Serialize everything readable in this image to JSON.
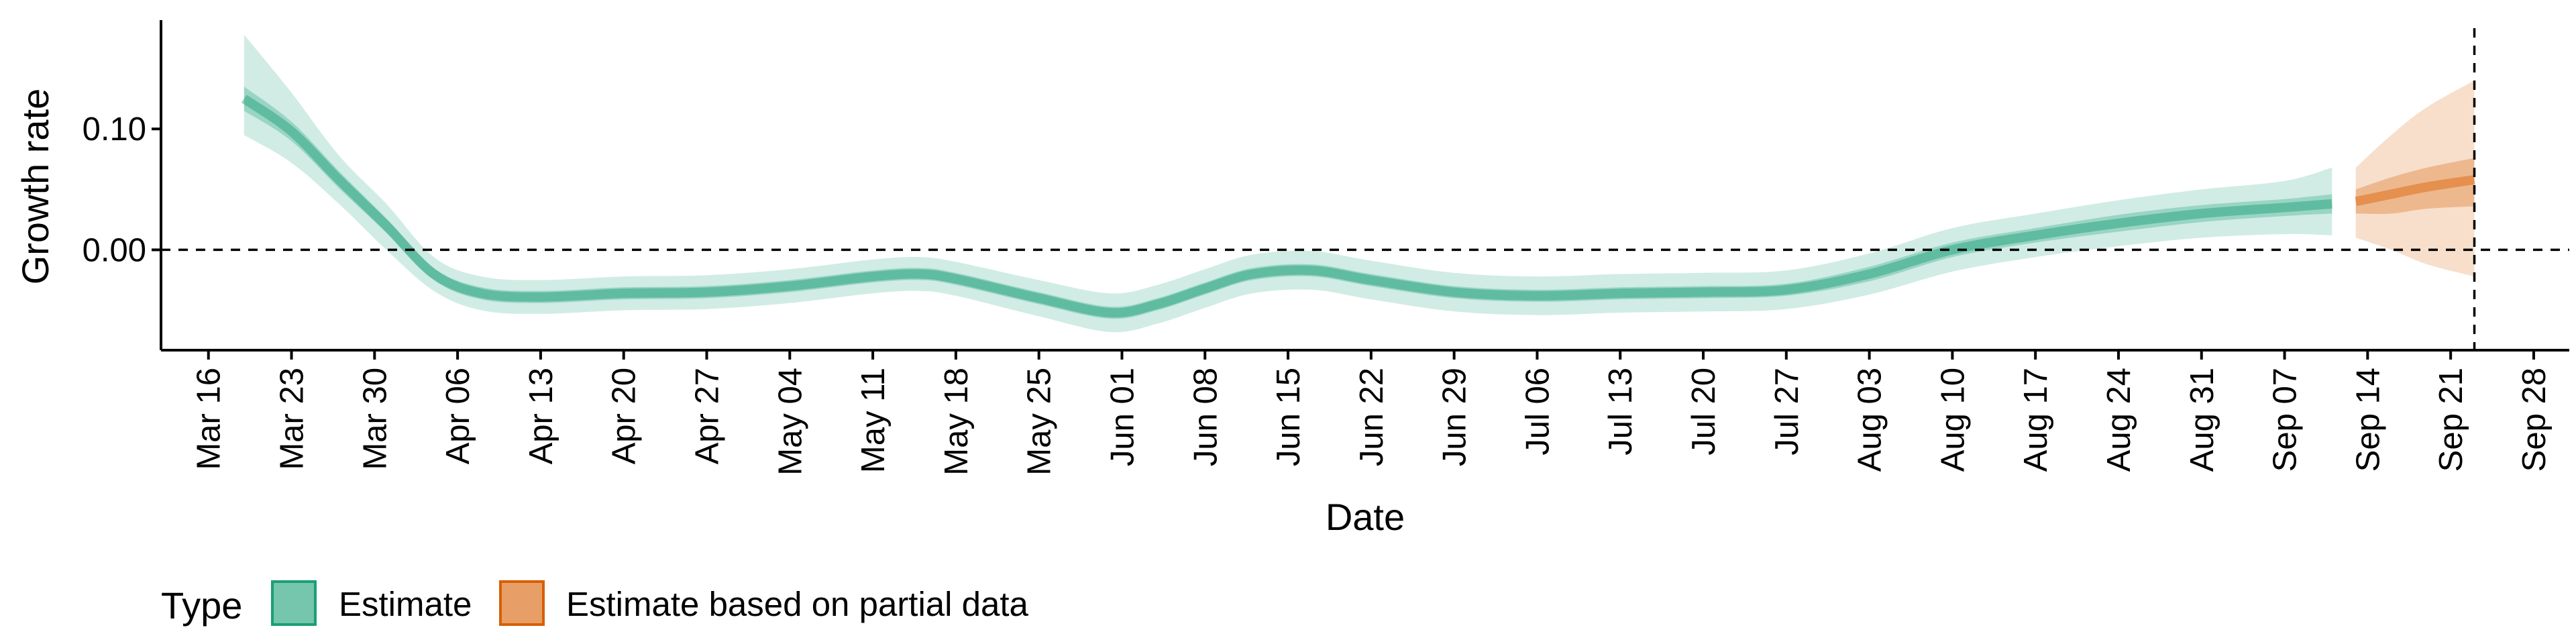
{
  "chart_data": {
    "type": "area",
    "xlabel": "Date",
    "ylabel": "Growth rate",
    "ylim": [
      -0.083,
      0.19
    ],
    "x_ticks": [
      "2020-03-16",
      "2020-03-23",
      "2020-03-30",
      "2020-04-06",
      "2020-04-13",
      "2020-04-20",
      "2020-04-27",
      "2020-05-04",
      "2020-05-11",
      "2020-05-18",
      "2020-05-25",
      "2020-06-01",
      "2020-06-08",
      "2020-06-15",
      "2020-06-22",
      "2020-06-29",
      "2020-07-06",
      "2020-07-13",
      "2020-07-20",
      "2020-07-27",
      "2020-08-03",
      "2020-08-10",
      "2020-08-17",
      "2020-08-24",
      "2020-08-31",
      "2020-09-07",
      "2020-09-14",
      "2020-09-21",
      "2020-09-28"
    ],
    "x_tick_labels": [
      "Mar 16",
      "Mar 23",
      "Mar 30",
      "Apr 06",
      "Apr 13",
      "Apr 20",
      "Apr 27",
      "May 04",
      "May 11",
      "May 18",
      "May 25",
      "Jun 01",
      "Jun 08",
      "Jun 15",
      "Jun 22",
      "Jun 29",
      "Jul 06",
      "Jul 13",
      "Jul 20",
      "Jul 27",
      "Aug 03",
      "Aug 10",
      "Aug 17",
      "Aug 24",
      "Aug 31",
      "Sep 07",
      "Sep 14",
      "Sep 21",
      "Sep 28"
    ],
    "y_ticks": [
      0.0,
      0.1
    ],
    "y_tick_labels": [
      "0.00",
      "0.10"
    ],
    "reference_lines": {
      "horizontal_y": 0.0,
      "vertical_x": "2020-09-23"
    },
    "legend": {
      "title": "Type",
      "position": "bottom-left",
      "entries": [
        "Estimate",
        "Estimate based on partial data"
      ]
    },
    "series": [
      {
        "name": "Estimate",
        "color": "#1b9e77",
        "x": [
          "2020-03-19",
          "2020-03-23",
          "2020-03-27",
          "2020-03-31",
          "2020-04-04",
          "2020-04-08",
          "2020-04-13",
          "2020-04-20",
          "2020-04-27",
          "2020-05-04",
          "2020-05-11",
          "2020-05-15",
          "2020-05-18",
          "2020-05-25",
          "2020-05-31",
          "2020-06-04",
          "2020-06-08",
          "2020-06-12",
          "2020-06-17",
          "2020-06-22",
          "2020-06-29",
          "2020-07-06",
          "2020-07-13",
          "2020-07-20",
          "2020-07-27",
          "2020-08-03",
          "2020-08-10",
          "2020-08-17",
          "2020-08-24",
          "2020-08-31",
          "2020-09-07",
          "2020-09-11"
        ],
        "median": [
          0.125,
          0.098,
          0.058,
          0.02,
          -0.02,
          -0.036,
          -0.039,
          -0.036,
          -0.035,
          -0.03,
          -0.022,
          -0.02,
          -0.024,
          -0.04,
          -0.052,
          -0.045,
          -0.032,
          -0.02,
          -0.017,
          -0.025,
          -0.035,
          -0.038,
          -0.036,
          -0.035,
          -0.033,
          -0.02,
          0.0,
          0.012,
          0.022,
          0.03,
          0.035,
          0.038
        ],
        "lower90": [
          0.095,
          0.072,
          0.038,
          0.0,
          -0.034,
          -0.05,
          -0.053,
          -0.05,
          -0.049,
          -0.044,
          -0.036,
          -0.034,
          -0.038,
          -0.055,
          -0.068,
          -0.061,
          -0.048,
          -0.036,
          -0.033,
          -0.041,
          -0.051,
          -0.054,
          -0.052,
          -0.051,
          -0.049,
          -0.037,
          -0.018,
          -0.006,
          0.003,
          0.01,
          0.013,
          0.012
        ],
        "upper90": [
          0.178,
          0.13,
          0.078,
          0.038,
          -0.006,
          -0.022,
          -0.025,
          -0.022,
          -0.021,
          -0.016,
          -0.008,
          -0.006,
          -0.01,
          -0.025,
          -0.036,
          -0.029,
          -0.016,
          -0.004,
          -0.001,
          -0.009,
          -0.019,
          -0.022,
          -0.02,
          -0.019,
          -0.017,
          -0.003,
          0.018,
          0.03,
          0.041,
          0.05,
          0.057,
          0.068
        ],
        "lower50": [
          0.115,
          0.09,
          0.051,
          0.014,
          -0.025,
          -0.041,
          -0.044,
          -0.041,
          -0.04,
          -0.035,
          -0.027,
          -0.025,
          -0.029,
          -0.045,
          -0.057,
          -0.05,
          -0.037,
          -0.025,
          -0.022,
          -0.03,
          -0.04,
          -0.043,
          -0.041,
          -0.04,
          -0.038,
          -0.026,
          -0.006,
          0.006,
          0.015,
          0.023,
          0.028,
          0.03
        ],
        "upper50": [
          0.135,
          0.106,
          0.065,
          0.026,
          -0.015,
          -0.031,
          -0.034,
          -0.031,
          -0.03,
          -0.025,
          -0.017,
          -0.015,
          -0.019,
          -0.035,
          -0.047,
          -0.04,
          -0.027,
          -0.015,
          -0.012,
          -0.02,
          -0.03,
          -0.033,
          -0.031,
          -0.03,
          -0.028,
          -0.014,
          0.006,
          0.018,
          0.029,
          0.037,
          0.042,
          0.046
        ]
      },
      {
        "name": "Estimate based on partial data",
        "color": "#d95f02",
        "x": [
          "2020-09-13",
          "2020-09-16",
          "2020-09-19",
          "2020-09-23"
        ],
        "median": [
          0.04,
          0.046,
          0.052,
          0.058
        ],
        "lower90": [
          0.01,
          0.0,
          -0.012,
          -0.022
        ],
        "upper90": [
          0.068,
          0.095,
          0.118,
          0.14
        ],
        "lower50": [
          0.03,
          0.03,
          0.034,
          0.036
        ],
        "upper50": [
          0.05,
          0.06,
          0.068,
          0.076
        ]
      }
    ]
  }
}
